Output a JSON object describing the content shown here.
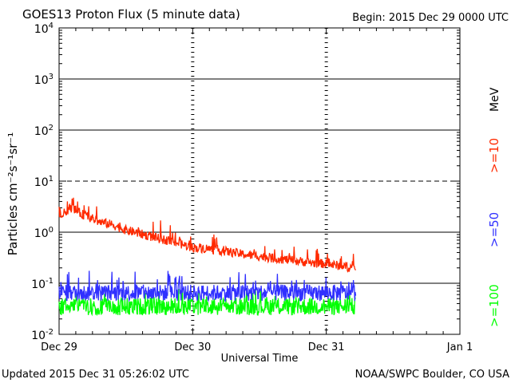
{
  "chart_data": {
    "type": "line",
    "title": "GOES13 Proton Flux (5 minute data)",
    "begin_text": "Begin: 2015 Dec 29 0000 UTC",
    "ylabel": "Particles cm⁻²s⁻¹sr⁻¹",
    "xlabel": "Universal Time",
    "yscale": "log",
    "ylim": [
      0.01,
      10000
    ],
    "y_ticks": [
      {
        "base": "10",
        "exp": "4"
      },
      {
        "base": "10",
        "exp": "3"
      },
      {
        "base": "10",
        "exp": "2"
      },
      {
        "base": "10",
        "exp": "1"
      },
      {
        "base": "10",
        "exp": "0"
      },
      {
        "base": "10",
        "exp": "-1"
      },
      {
        "base": "10",
        "exp": "-2"
      }
    ],
    "x_units": "days since 2015 Dec 29 00:00 UTC",
    "xlim": [
      0,
      3
    ],
    "x_ticks": [
      "Dec 29",
      "Dec 30",
      "Dec 31",
      "Jan 1"
    ],
    "threshold_lines": [
      {
        "value": 10,
        "style": "dashed"
      }
    ],
    "energy_unit": "MeV",
    "series": [
      {
        "name": ">=10",
        "color": "#ff2a00",
        "x_start": 0.0,
        "x_end": 2.22,
        "x": [
          0.0,
          0.05,
          0.1,
          0.15,
          0.2,
          0.3,
          0.4,
          0.5,
          0.6,
          0.7,
          0.8,
          0.9,
          1.0,
          1.1,
          1.2,
          1.3,
          1.4,
          1.5,
          1.6,
          1.7,
          1.8,
          1.9,
          2.0,
          2.1,
          2.2
        ],
        "values": [
          1.7,
          2.6,
          3.1,
          2.4,
          2.1,
          1.6,
          1.4,
          1.1,
          0.95,
          0.8,
          0.7,
          0.6,
          0.5,
          0.48,
          0.44,
          0.4,
          0.36,
          0.34,
          0.31,
          0.29,
          0.27,
          0.25,
          0.24,
          0.22,
          0.2
        ]
      },
      {
        "name": ">=50",
        "color": "#3030ff",
        "x_start": 0.0,
        "x_end": 2.22,
        "level": 0.065
      },
      {
        "name": ">=100",
        "color": "#00ff00",
        "x_start": 0.0,
        "x_end": 2.22,
        "level": 0.035
      }
    ]
  },
  "footer": {
    "updated": "Updated 2015 Dec 31 05:26:02 UTC",
    "source": "NOAA/SWPC Boulder, CO USA"
  }
}
